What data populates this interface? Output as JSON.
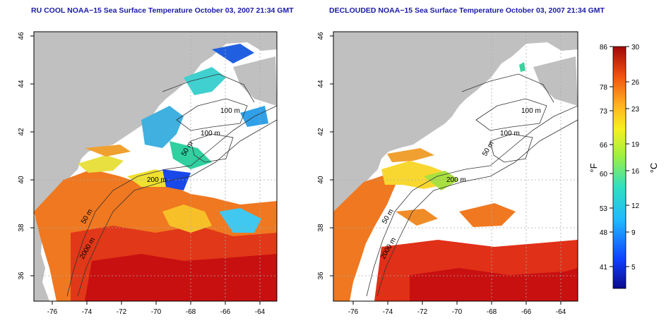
{
  "titles": {
    "left": "RU COOL NOAA−15 Sea Surface Temperature October 03, 2007 21:34 GMT",
    "right": "DECLOUDED NOAA−15 Sea Surface Temperature October 03, 2007 21:34 GMT"
  },
  "axes": {
    "lon_ticks": [
      "-76",
      "-74",
      "-72",
      "-70",
      "-68",
      "-66",
      "-64"
    ],
    "lat_ticks": [
      "36",
      "38",
      "40",
      "42",
      "44",
      "46"
    ]
  },
  "contours": {
    "left": [
      "100 m",
      "100 m",
      "50 m",
      "200 m",
      "50 m",
      "2000 m"
    ],
    "right": [
      "100 m",
      "100 m",
      "50 m",
      "200 m",
      "50 m",
      "2000 m"
    ]
  },
  "colorbar": {
    "fahrenheit_label": "°F",
    "celsius_label": "°C",
    "fahrenheit_ticks": [
      "86",
      "78",
      "73",
      "66",
      "60",
      "53",
      "48",
      "41"
    ],
    "celsius_ticks": [
      "30",
      "26",
      "23",
      "19",
      "16",
      "12",
      "9",
      "5"
    ]
  },
  "colors": {
    "land": "#c0c0c0",
    "title": "#1a1aa8",
    "warm": "#d01010",
    "cool": "#1040e0"
  }
}
